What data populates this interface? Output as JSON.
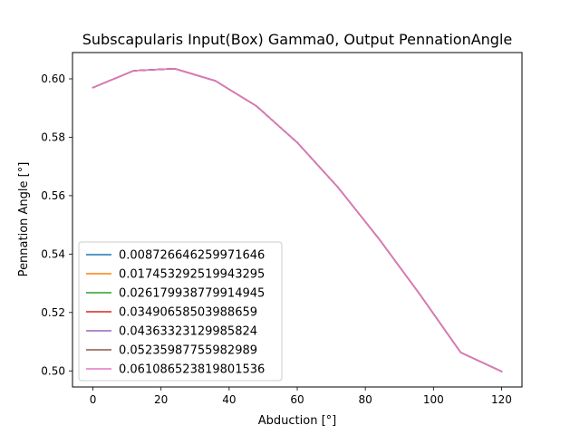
{
  "chart_data": {
    "type": "line",
    "title": "Subscapularis Input(Box) Gamma0, Output PennationAngle",
    "xlabel": "Abduction [°]",
    "ylabel": "Pennation Angle [°]",
    "xlim": [
      -6,
      126
    ],
    "ylim": [
      0.4945,
      0.609
    ],
    "x_ticks": [
      0,
      20,
      40,
      60,
      80,
      100,
      120
    ],
    "y_ticks": [
      0.5,
      0.52,
      0.54,
      0.56,
      0.58,
      0.6
    ],
    "x_tick_labels": [
      "0",
      "20",
      "40",
      "60",
      "80",
      "100",
      "120"
    ],
    "y_tick_labels": [
      "0.50",
      "0.52",
      "0.54",
      "0.56",
      "0.58",
      "0.60"
    ],
    "grid": false,
    "legend_position": "lower-left",
    "x": [
      0,
      12,
      24,
      36,
      48,
      60,
      72,
      84,
      96,
      108,
      120
    ],
    "series": [
      {
        "name": "0.008726646259971646",
        "color": "#1f77b4",
        "values": [
          0.597,
          0.6028,
          0.6035,
          0.5993,
          0.5907,
          0.5782,
          0.5628,
          0.5452,
          0.5262,
          0.5063,
          0.4998
        ]
      },
      {
        "name": "0.017453292519943295",
        "color": "#ff7f0e",
        "values": [
          0.597,
          0.6028,
          0.6035,
          0.5993,
          0.5907,
          0.5782,
          0.5628,
          0.5452,
          0.5262,
          0.5063,
          0.4998
        ]
      },
      {
        "name": "0.026179938779914945",
        "color": "#2ca02c",
        "values": [
          0.597,
          0.6028,
          0.6035,
          0.5993,
          0.5907,
          0.5782,
          0.5628,
          0.5452,
          0.5262,
          0.5063,
          0.4998
        ]
      },
      {
        "name": "0.03490658503988659",
        "color": "#d62728",
        "values": [
          0.597,
          0.6028,
          0.6035,
          0.5993,
          0.5907,
          0.5782,
          0.5628,
          0.5452,
          0.5262,
          0.5063,
          0.4998
        ]
      },
      {
        "name": "0.04363323129985824",
        "color": "#9467bd",
        "values": [
          0.597,
          0.6028,
          0.6035,
          0.5993,
          0.5907,
          0.5782,
          0.5628,
          0.5452,
          0.5262,
          0.5063,
          0.4998
        ]
      },
      {
        "name": "0.05235987755982989",
        "color": "#8c564b",
        "values": [
          0.597,
          0.6028,
          0.6035,
          0.5993,
          0.5907,
          0.5782,
          0.5628,
          0.5452,
          0.5262,
          0.5063,
          0.4998
        ]
      },
      {
        "name": "0.061086523819801536",
        "color": "#e377c2",
        "values": [
          0.597,
          0.6028,
          0.6035,
          0.5993,
          0.5907,
          0.5782,
          0.5628,
          0.5452,
          0.5262,
          0.5063,
          0.4998
        ]
      }
    ]
  }
}
